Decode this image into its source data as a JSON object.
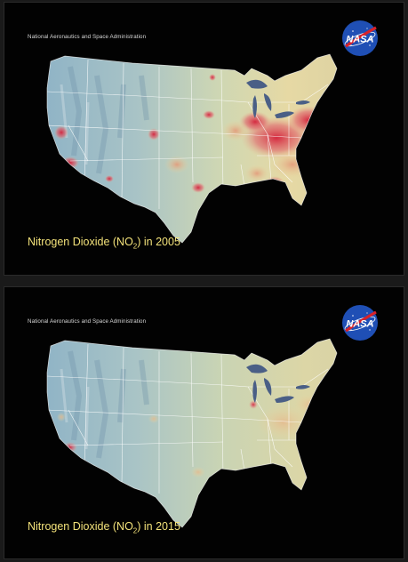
{
  "panels": [
    {
      "agency": "National Aeronautics and Space Administration",
      "logo_text": "NASA",
      "caption_prefix": "Nitrogen Dioxide (NO",
      "caption_sub": "2",
      "caption_suffix": ") in 2005",
      "year": "2005"
    },
    {
      "agency": "National Aeronautics and Space Administration",
      "logo_text": "NASA",
      "caption_prefix": "Nitrogen Dioxide (NO",
      "caption_sub": "2",
      "caption_suffix": ") in 2015",
      "year": "2015"
    }
  ],
  "colors": {
    "caption": "#f3e27a",
    "low": "#8fb3c7",
    "mid": "#e9dfa4",
    "high": "#d8283a",
    "background": "#020202"
  }
}
